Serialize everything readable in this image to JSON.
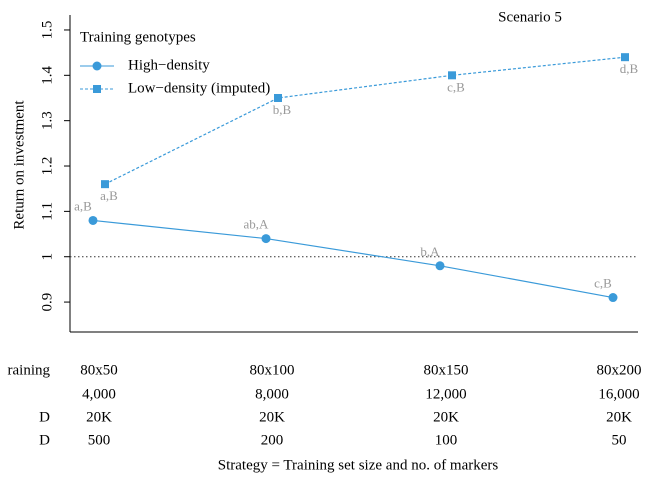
{
  "chart_data": {
    "type": "line",
    "annotation": "Scenario 5",
    "ylabel": "Return on investment",
    "xlabel": "Strategy = Training set size and no. of markers",
    "categories": [
      "80x50",
      "80x100",
      "80x150",
      "80x200"
    ],
    "ylim": [
      0.834,
      1.533
    ],
    "yticks": [
      0.9,
      1.0,
      1.1,
      1.2,
      1.3,
      1.4,
      1.5
    ],
    "hline": 1.0,
    "legend_title": "Training genotypes",
    "legend": "top-left",
    "series": [
      {
        "name": "High−density",
        "color": "#3a9ad9",
        "marker": "circle",
        "dash": false,
        "values": [
          1.08,
          1.04,
          0.98,
          0.91
        ],
        "labels": [
          "a,B",
          "ab,A",
          "b,A",
          "c,B"
        ]
      },
      {
        "name": "Low−density (imputed)",
        "color": "#3a9ad9",
        "marker": "square",
        "dash": true,
        "values": [
          1.16,
          1.35,
          1.4,
          1.44
        ],
        "labels": [
          "a,B",
          "b,B",
          "c,B",
          "d,B"
        ]
      }
    ],
    "table": [
      {
        "label": "raining",
        "cells": [
          "80x50",
          "80x100",
          "80x150",
          "80x200"
        ]
      },
      {
        "cells": [
          "4,000",
          "8,000",
          "12,000",
          "16,000"
        ]
      },
      {
        "label": "D",
        "cells": [
          "20K",
          "20K",
          "20K",
          "20K"
        ]
      },
      {
        "label": "D",
        "cells": [
          "500",
          "200",
          "100",
          "50"
        ]
      }
    ]
  }
}
